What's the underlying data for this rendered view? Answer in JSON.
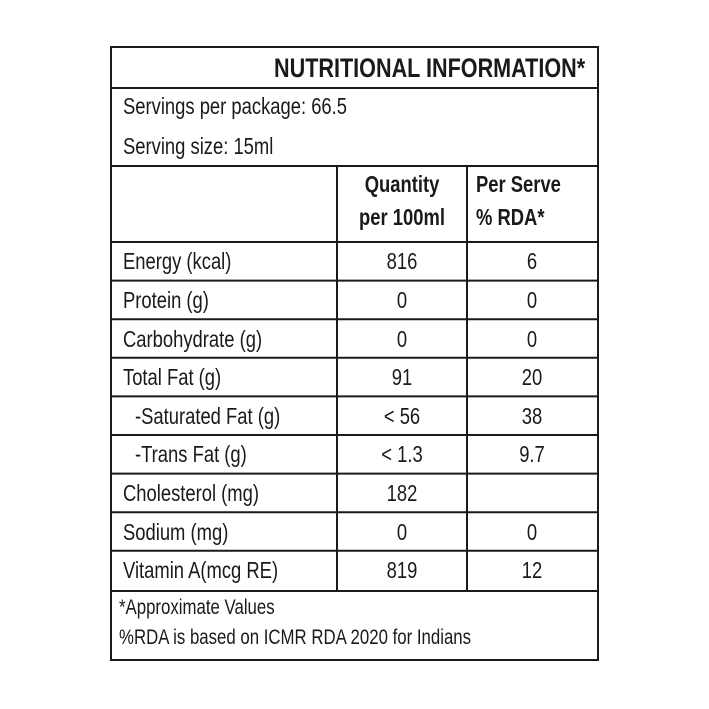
{
  "title": "NUTRITIONAL INFORMATION*",
  "servings_per_package": "Servings per package: 66.5",
  "serving_size": "Serving size: 15ml",
  "headers": [
    [
      "Quantity",
      "per 100ml"
    ],
    [
      "Per Serve",
      "% RDA*"
    ]
  ],
  "rows": [
    [
      "Energy (kcal)",
      "816",
      "6"
    ],
    [
      "Protein (g)",
      "0",
      "0"
    ],
    [
      "Carbohydrate (g)",
      "0",
      "0"
    ],
    [
      "Total Fat (g)",
      "91",
      "20"
    ],
    [
      "-Saturated Fat (g)",
      "< 56",
      "38"
    ],
    [
      "-Trans Fat (g)",
      "< 1.3",
      "9.7"
    ],
    [
      "Cholesterol (mg)",
      "182",
      null
    ],
    [
      "Sodium (mg)",
      "0",
      "0"
    ],
    [
      "Vitamin A(mcg RE)",
      "819",
      "12"
    ]
  ],
  "footer": [
    "*Approximate Values",
    "%RDA is based on ICMR RDA 2020 for Indians"
  ]
}
